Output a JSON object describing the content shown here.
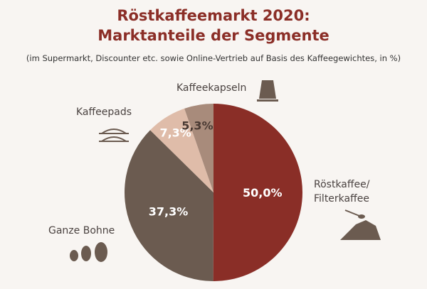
{
  "chart_data": {
    "type": "pie",
    "title": "Röstkaffeemarkt 2020:",
    "title_line2": "Marktanteile der Segmente",
    "subtitle": "(im Supermarkt, Discounter etc. sowie Online-Vertrieb auf Basis des Kaffeegewichtes, in %)",
    "slices": [
      {
        "name": "Röstkaffee/ Filterkaffee",
        "line1": "Röstkaffee/",
        "line2": "Filterkaffee",
        "value": 50.0,
        "label": "50,0%",
        "color": "#8a2e27",
        "label_color": "#ffffff"
      },
      {
        "name": "Ganze Bohne",
        "value": 37.3,
        "label": "37,3%",
        "color": "#6b5b50",
        "label_color": "#ffffff"
      },
      {
        "name": "Kaffeepads",
        "value": 7.3,
        "label": "7,3%",
        "color": "#dfbca9",
        "label_color": "#ffffff"
      },
      {
        "name": "Kaffeekapseln",
        "value": 5.3,
        "label": "5,3%",
        "color": "#a88b7b",
        "label_color": "#4a3a33"
      }
    ]
  }
}
